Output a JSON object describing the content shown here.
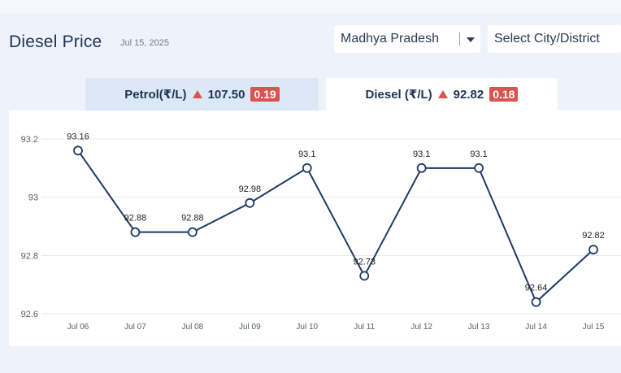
{
  "header": {
    "title": "Diesel Price",
    "date": "Jul 15, 2025"
  },
  "filters": {
    "state": "Madhya Pradesh",
    "city_placeholder": "Select City/District"
  },
  "tabs": [
    {
      "label": "Petrol(₹/L)",
      "price": "107.50",
      "change": "0.19"
    },
    {
      "label": "Diesel (₹/L)",
      "price": "92.82",
      "change": "0.18"
    }
  ],
  "colors": {
    "line": "#1e3a66",
    "up_arrow": "#d9534f",
    "badge": "#d9534f"
  },
  "chart_data": {
    "type": "line",
    "title": "",
    "xlabel": "",
    "ylabel": "",
    "categories": [
      "Jul 06",
      "Jul 07",
      "Jul 08",
      "Jul 09",
      "Jul 10",
      "Jul 11",
      "Jul 12",
      "Jul 13",
      "Jul 14",
      "Jul 15"
    ],
    "series": [
      {
        "values": [
          93.16,
          92.88,
          92.88,
          92.98,
          93.1,
          92.73,
          93.1,
          93.1,
          92.64,
          92.82
        ],
        "labels": [
          "93.16",
          "92.88",
          "92.88",
          "92.98",
          "93.1",
          "92.73",
          "93.1",
          "93.1",
          "92.64",
          "92.82"
        ]
      }
    ],
    "ylim": [
      92.6,
      93.2
    ],
    "yticks": [
      "92.6",
      "92.8",
      "93",
      "93.2"
    ],
    "grid": "horizontal"
  }
}
